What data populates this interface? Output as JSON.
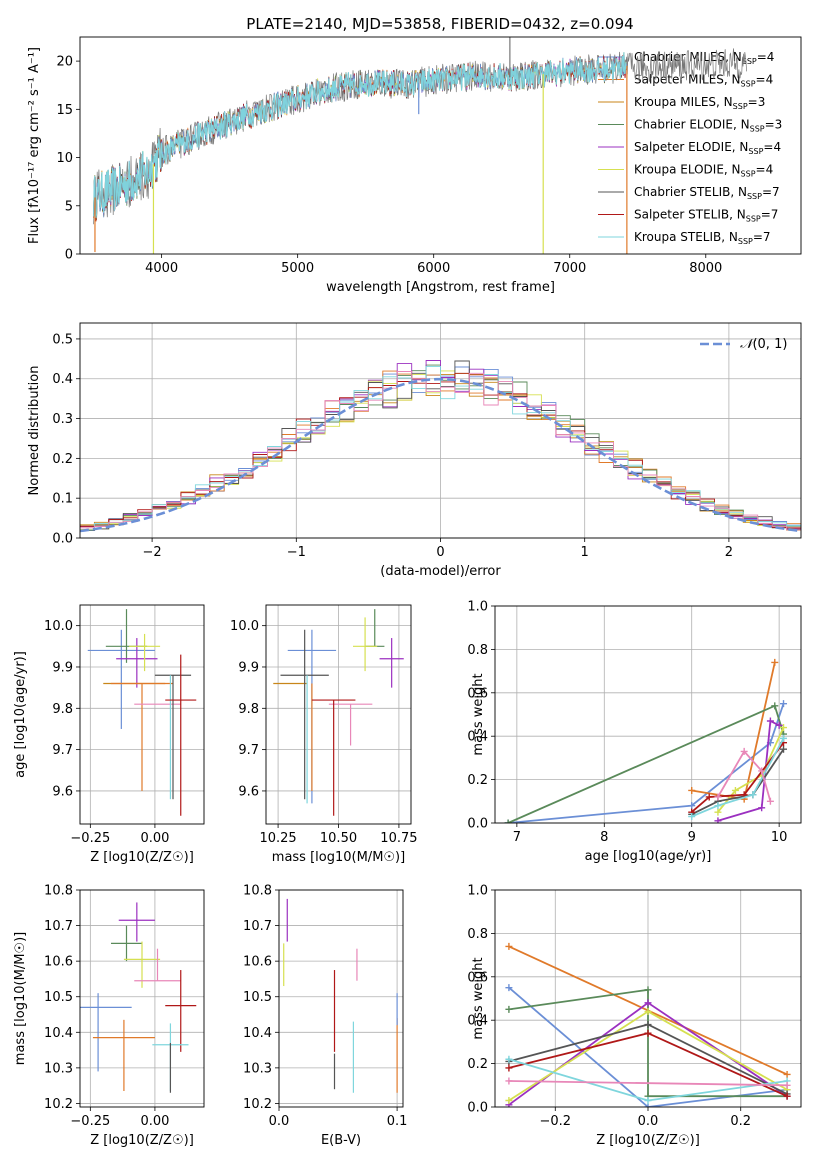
{
  "figure": {
    "title": "PLATE=2140, MJD=53858, FIBERID=0432, z=0.094"
  },
  "colors": {
    "chabrier_miles": "#6b8fd6",
    "salpeter_miles": "#e07a2a",
    "kroupa_miles": "#c8861a",
    "chabrier_elodie": "#5a8a5a",
    "salpeter_elodie": "#9b30c0",
    "kroupa_elodie": "#d6e050",
    "chabrier_stelib": "#555555",
    "salpeter_stelib": "#b01818",
    "kroupa_stelib": "#7fd6dd",
    "pink": "#e887b8",
    "gauss": "#6b8fd6",
    "grid": "#b0b0b0"
  },
  "legend": [
    {
      "label": "Chabrier MILES, N",
      "sub": "SSP",
      "tail": "=4",
      "color": "#6b8fd6"
    },
    {
      "label": "Salpeter MILES, N",
      "sub": "SSP",
      "tail": "=4",
      "color": "#e07a2a"
    },
    {
      "label": "Kroupa MILES, N",
      "sub": "SSP",
      "tail": "=3",
      "color": "#c8861a"
    },
    {
      "label": "Chabrier ELODIE, N",
      "sub": "SSP",
      "tail": "=3",
      "color": "#5a8a5a"
    },
    {
      "label": "Salpeter ELODIE, N",
      "sub": "SSP",
      "tail": "=4",
      "color": "#9b30c0"
    },
    {
      "label": "Kroupa ELODIE, N",
      "sub": "SSP",
      "tail": "=4",
      "color": "#d6e050"
    },
    {
      "label": "Chabrier STELIB, N",
      "sub": "SSP",
      "tail": "=7",
      "color": "#555555"
    },
    {
      "label": "Salpeter STELIB, N",
      "sub": "SSP",
      "tail": "=7",
      "color": "#b01818"
    },
    {
      "label": "Kroupa STELIB, N",
      "sub": "SSP",
      "tail": "=7",
      "color": "#7fd6dd"
    }
  ],
  "chart_data": [
    {
      "id": "spectrum",
      "type": "line",
      "xlabel": "wavelength [Angstrom, rest frame]",
      "ylabel": "Flux [fλ10⁻¹⁷ erg cm⁻² s⁻¹ A⁻¹]",
      "xlim": [
        3400,
        8700
      ],
      "ylim": [
        0,
        22.5
      ],
      "xticks": [
        4000,
        5000,
        6000,
        7000,
        8000
      ],
      "yticks": [
        0,
        5,
        10,
        15,
        20
      ],
      "trend": [
        [
          3500,
          5.8
        ],
        [
          3700,
          7.0
        ],
        [
          3900,
          8.5
        ],
        [
          4000,
          10.5
        ],
        [
          4300,
          12.5
        ],
        [
          4600,
          14.2
        ],
        [
          4900,
          15.6
        ],
        [
          5200,
          17.0
        ],
        [
          5500,
          17.8
        ],
        [
          5800,
          17.6
        ],
        [
          6000,
          18.0
        ],
        [
          6300,
          18.5
        ],
        [
          6600,
          18.3
        ],
        [
          7000,
          19.0
        ],
        [
          7300,
          19.2
        ],
        [
          7400,
          19.5
        ]
      ],
      "data_extent": [
        3500,
        7420
      ],
      "spikes": [
        [
          3510,
          0.2
        ],
        [
          3940,
          0.0
        ],
        [
          6805,
          0.0
        ],
        [
          7420,
          0.0
        ],
        [
          6560,
          24.0
        ],
        [
          5890,
          14.5
        ]
      ]
    },
    {
      "id": "residuals",
      "type": "bar",
      "xlabel": "(data-model)/error",
      "ylabel": "Normed distribution",
      "xlim": [
        -2.5,
        2.5
      ],
      "ylim": [
        0,
        0.54
      ],
      "xticks": [
        -2,
        -1,
        0,
        1,
        2
      ],
      "yticks": [
        0.0,
        0.1,
        0.2,
        0.3,
        0.4,
        0.5
      ],
      "bin_width": 0.1,
      "gauss_label": "N(0,1)",
      "histogram_approx": "step histograms of each model following the unit normal curve with bin-to-bin scatter of about 0.03"
    },
    {
      "id": "age_vs_Z",
      "type": "scatter",
      "xlabel": "Z [log10(Z/Z☉)]",
      "ylabel": "age  [log10(age/yr)]",
      "xlim": [
        -0.29,
        0.19
      ],
      "ylim": [
        9.52,
        10.05
      ],
      "xticks": [
        -0.25,
        0.0
      ],
      "yticks": [
        9.6,
        9.7,
        9.8,
        9.9,
        10.0
      ],
      "points": [
        {
          "x": -0.13,
          "y": 9.94,
          "xerr": 0.13,
          "yerr_lo": 0.19,
          "yerr_hi": 0.05,
          "color": "#6b8fd6"
        },
        {
          "x": -0.11,
          "y": 9.95,
          "xerr": 0.08,
          "yerr_lo": 0.04,
          "yerr_hi": 0.09,
          "color": "#5a8a5a"
        },
        {
          "x": -0.07,
          "y": 9.92,
          "xerr": 0.08,
          "yerr_lo": 0.07,
          "yerr_hi": 0.05,
          "color": "#9b30c0"
        },
        {
          "x": -0.04,
          "y": 9.95,
          "xerr": 0.06,
          "yerr_lo": 0.06,
          "yerr_hi": 0.03,
          "color": "#d6e050"
        },
        {
          "x": -0.08,
          "y": 9.86,
          "xerr": 0.12,
          "yerr_lo": 0.0,
          "yerr_hi": 0.0,
          "color": "#c8861a"
        },
        {
          "x": -0.05,
          "y": 9.86,
          "xerr": 0.12,
          "yerr_lo": 0.26,
          "yerr_hi": 0.0,
          "color": "#e07a2a"
        },
        {
          "x": 0.01,
          "y": 9.81,
          "xerr": 0.09,
          "yerr_lo": 0.0,
          "yerr_hi": 0.0,
          "color": "#e887b8"
        },
        {
          "x": 0.07,
          "y": 9.88,
          "xerr": 0.07,
          "yerr_lo": 0.3,
          "yerr_hi": 0.0,
          "color": "#555555"
        },
        {
          "x": 0.06,
          "y": 9.88,
          "xerr": 0.0,
          "yerr_lo": 0.3,
          "yerr_hi": 0.0,
          "color": "#7fd6dd"
        },
        {
          "x": 0.1,
          "y": 9.82,
          "xerr": 0.06,
          "yerr_lo": 0.28,
          "yerr_hi": 0.11,
          "color": "#b01818"
        }
      ]
    },
    {
      "id": "age_vs_mass",
      "type": "scatter",
      "xlabel": "mass [log10(M/M☉)]",
      "xlim": [
        10.2,
        10.8
      ],
      "ylim": [
        9.52,
        10.05
      ],
      "xticks": [
        10.25,
        10.5,
        10.75
      ],
      "yticks": [
        9.6,
        9.7,
        9.8,
        9.9,
        10.0
      ],
      "points": [
        {
          "x": 10.39,
          "y": 9.94,
          "xerr": 0.1,
          "yerr_lo": 0.37,
          "yerr_hi": 0.05,
          "color": "#6b8fd6"
        },
        {
          "x": 10.3,
          "y": 9.86,
          "xerr": 0.07,
          "yerr_lo": 0.0,
          "yerr_hi": 0.0,
          "color": "#c8861a"
        },
        {
          "x": 10.39,
          "y": 9.86,
          "xerr": 0.0,
          "yerr_lo": 0.26,
          "yerr_hi": 0.0,
          "color": "#e07a2a"
        },
        {
          "x": 10.65,
          "y": 9.95,
          "xerr": 0.04,
          "yerr_lo": 0.0,
          "yerr_hi": 0.09,
          "color": "#5a8a5a"
        },
        {
          "x": 10.72,
          "y": 9.92,
          "xerr": 0.05,
          "yerr_lo": 0.07,
          "yerr_hi": 0.05,
          "color": "#9b30c0"
        },
        {
          "x": 10.61,
          "y": 9.95,
          "xerr": 0.05,
          "yerr_lo": 0.06,
          "yerr_hi": 0.07,
          "color": "#d6e050"
        },
        {
          "x": 10.55,
          "y": 9.81,
          "xerr": 0.09,
          "yerr_lo": 0.1,
          "yerr_hi": 0.0,
          "color": "#e887b8"
        },
        {
          "x": 10.36,
          "y": 9.88,
          "xerr": 0.1,
          "yerr_lo": 0.3,
          "yerr_hi": 0.11,
          "color": "#555555"
        },
        {
          "x": 10.37,
          "y": 9.88,
          "xerr": 0.0,
          "yerr_lo": 0.31,
          "yerr_hi": 0.0,
          "color": "#7fd6dd"
        },
        {
          "x": 10.48,
          "y": 9.82,
          "xerr": 0.09,
          "yerr_lo": 0.28,
          "yerr_hi": 0.0,
          "color": "#b01818"
        }
      ]
    },
    {
      "id": "weight_vs_age",
      "type": "line",
      "xlabel": "age  [log10(age/yr)]",
      "ylabel": "mass weight",
      "xlim": [
        6.75,
        10.25
      ],
      "ylim": [
        0,
        1
      ],
      "xticks": [
        7,
        8,
        9,
        10
      ],
      "yticks": [
        0.0,
        0.2,
        0.4,
        0.6,
        0.8,
        1.0
      ],
      "series": [
        {
          "color": "#6b8fd6",
          "x": [
            6.9,
            9.0,
            9.9,
            10.05
          ],
          "y": [
            0.0,
            0.08,
            0.37,
            0.55
          ]
        },
        {
          "color": "#e07a2a",
          "x": [
            9.0,
            9.6,
            9.95
          ],
          "y": [
            0.15,
            0.11,
            0.74
          ]
        },
        {
          "color": "#5a8a5a",
          "x": [
            6.9,
            9.95,
            10.05
          ],
          "y": [
            0.0,
            0.54,
            0.41
          ]
        },
        {
          "color": "#9b30c0",
          "x": [
            9.3,
            9.8,
            9.9,
            10.0
          ],
          "y": [
            0.01,
            0.07,
            0.47,
            0.45
          ]
        },
        {
          "color": "#d6e050",
          "x": [
            9.3,
            9.5,
            9.8,
            10.05
          ],
          "y": [
            0.05,
            0.15,
            0.22,
            0.44
          ]
        },
        {
          "color": "#555555",
          "x": [
            9.0,
            9.3,
            9.7,
            10.05
          ],
          "y": [
            0.04,
            0.1,
            0.13,
            0.34
          ]
        },
        {
          "color": "#b01818",
          "x": [
            9.0,
            9.2,
            9.6,
            10.05
          ],
          "y": [
            0.05,
            0.12,
            0.13,
            0.37
          ]
        },
        {
          "color": "#7fd6dd",
          "x": [
            9.0,
            9.3,
            9.7,
            10.05
          ],
          "y": [
            0.03,
            0.08,
            0.13,
            0.39
          ]
        },
        {
          "color": "#e887b8",
          "x": [
            9.3,
            9.6,
            9.8,
            9.9
          ],
          "y": [
            0.12,
            0.33,
            0.24,
            0.1
          ]
        }
      ]
    },
    {
      "id": "mass_vs_Z",
      "type": "scatter",
      "xlabel": "Z [log10(Z/Z☉)]",
      "ylabel": "mass [log10(M/M☉)]",
      "xlim": [
        -0.29,
        0.19
      ],
      "ylim": [
        10.19,
        10.8
      ],
      "xticks": [
        -0.25,
        0.0
      ],
      "yticks": [
        10.2,
        10.3,
        10.4,
        10.5,
        10.6,
        10.7,
        10.8
      ],
      "points": [
        {
          "x": -0.07,
          "y": 10.715,
          "xerr": 0.07,
          "yerr_lo": 0.06,
          "yerr_hi": 0.05,
          "color": "#9b30c0"
        },
        {
          "x": -0.11,
          "y": 10.65,
          "xerr": 0.06,
          "yerr_lo": 0.05,
          "yerr_hi": 0.05,
          "color": "#5a8a5a"
        },
        {
          "x": -0.05,
          "y": 10.605,
          "xerr": 0.07,
          "yerr_lo": 0.08,
          "yerr_hi": 0.05,
          "color": "#d6e050"
        },
        {
          "x": 0.01,
          "y": 10.545,
          "xerr": 0.09,
          "yerr_lo": 0.0,
          "yerr_hi": 0.09,
          "color": "#e887b8"
        },
        {
          "x": -0.22,
          "y": 10.47,
          "xerr": 0.13,
          "yerr_lo": 0.18,
          "yerr_hi": 0.04,
          "color": "#6b8fd6"
        },
        {
          "x": 0.1,
          "y": 10.475,
          "xerr": 0.06,
          "yerr_lo": 0.13,
          "yerr_hi": 0.1,
          "color": "#b01818"
        },
        {
          "x": -0.12,
          "y": 10.385,
          "xerr": 0.12,
          "yerr_lo": 0.15,
          "yerr_hi": 0.05,
          "color": "#e07a2a"
        },
        {
          "x": 0.06,
          "y": 10.365,
          "xerr": 0.07,
          "yerr_lo": 0.13,
          "yerr_hi": 0.06,
          "color": "#7fd6dd"
        },
        {
          "x": 0.06,
          "y": 10.37,
          "xerr": 0.0,
          "yerr_lo": 0.14,
          "yerr_hi": 0.0,
          "color": "#555555"
        }
      ]
    },
    {
      "id": "mass_vs_ebv",
      "type": "scatter",
      "xlabel": "E(B-V)",
      "xlim": [
        0.0,
        0.105
      ],
      "ylim": [
        10.19,
        10.8
      ],
      "xticks": [
        0.0,
        0.1
      ],
      "yticks": [
        10.2,
        10.3,
        10.4,
        10.5,
        10.6,
        10.7,
        10.8
      ],
      "points": [
        {
          "x": 0.007,
          "y": 10.715,
          "xerr": 0.0,
          "yerr_lo": 0.06,
          "yerr_hi": 0.06,
          "color": "#9b30c0"
        },
        {
          "x": 0.004,
          "y": 10.6,
          "xerr": 0.0,
          "yerr_lo": 0.07,
          "yerr_hi": 0.05,
          "color": "#d6e050"
        },
        {
          "x": 0.066,
          "y": 10.545,
          "xerr": 0.0,
          "yerr_lo": 0.0,
          "yerr_hi": 0.09,
          "color": "#e887b8"
        },
        {
          "x": 0.047,
          "y": 10.475,
          "xerr": 0.0,
          "yerr_lo": 0.13,
          "yerr_hi": 0.1,
          "color": "#b01818"
        },
        {
          "x": 0.047,
          "y": 10.3,
          "xerr": 0.0,
          "yerr_lo": 0.06,
          "yerr_hi": 0.04,
          "color": "#555555"
        },
        {
          "x": 0.063,
          "y": 10.33,
          "xerr": 0.0,
          "yerr_lo": 0.1,
          "yerr_hi": 0.1,
          "color": "#7fd6dd"
        },
        {
          "x": 0.1,
          "y": 10.37,
          "xerr": 0.0,
          "yerr_lo": 0.14,
          "yerr_hi": 0.07,
          "color": "#e07a2a"
        },
        {
          "x": 0.1,
          "y": 10.47,
          "xerr": 0.0,
          "yerr_lo": 0.05,
          "yerr_hi": 0.04,
          "color": "#6b8fd6"
        }
      ]
    },
    {
      "id": "weight_vs_Z",
      "type": "line",
      "xlabel": "Z [log10(Z/Z☉)]",
      "ylabel": "mass weight",
      "xlim": [
        -0.33,
        0.33
      ],
      "ylim": [
        0,
        1
      ],
      "xticks": [
        -0.2,
        0.0,
        0.2
      ],
      "yticks": [
        0.0,
        0.2,
        0.4,
        0.6,
        0.8,
        1.0
      ],
      "series": [
        {
          "color": "#e07a2a",
          "x": [
            -0.3,
            0.3
          ],
          "y": [
            0.74,
            0.15
          ]
        },
        {
          "color": "#6b8fd6",
          "x": [
            -0.3,
            0.0,
            0.3
          ],
          "y": [
            0.55,
            0.0,
            0.08
          ]
        },
        {
          "color": "#5a8a5a",
          "x": [
            -0.3,
            0.0,
            0.0,
            0.3
          ],
          "y": [
            0.45,
            0.54,
            0.05,
            0.05
          ]
        },
        {
          "color": "#9b30c0",
          "x": [
            -0.3,
            0.0,
            0.3
          ],
          "y": [
            0.01,
            0.48,
            0.05
          ]
        },
        {
          "color": "#d6e050",
          "x": [
            -0.3,
            0.0,
            0.3
          ],
          "y": [
            0.03,
            0.44,
            0.08
          ]
        },
        {
          "color": "#555555",
          "x": [
            -0.3,
            0.0,
            0.3
          ],
          "y": [
            0.21,
            0.38,
            0.06
          ]
        },
        {
          "color": "#b01818",
          "x": [
            -0.3,
            0.0,
            0.3
          ],
          "y": [
            0.18,
            0.34,
            0.05
          ]
        },
        {
          "color": "#7fd6dd",
          "x": [
            -0.3,
            0.0,
            0.3
          ],
          "y": [
            0.22,
            0.03,
            0.12
          ]
        },
        {
          "color": "#e887b8",
          "x": [
            -0.3,
            0.3
          ],
          "y": [
            0.12,
            0.1
          ]
        }
      ]
    }
  ]
}
